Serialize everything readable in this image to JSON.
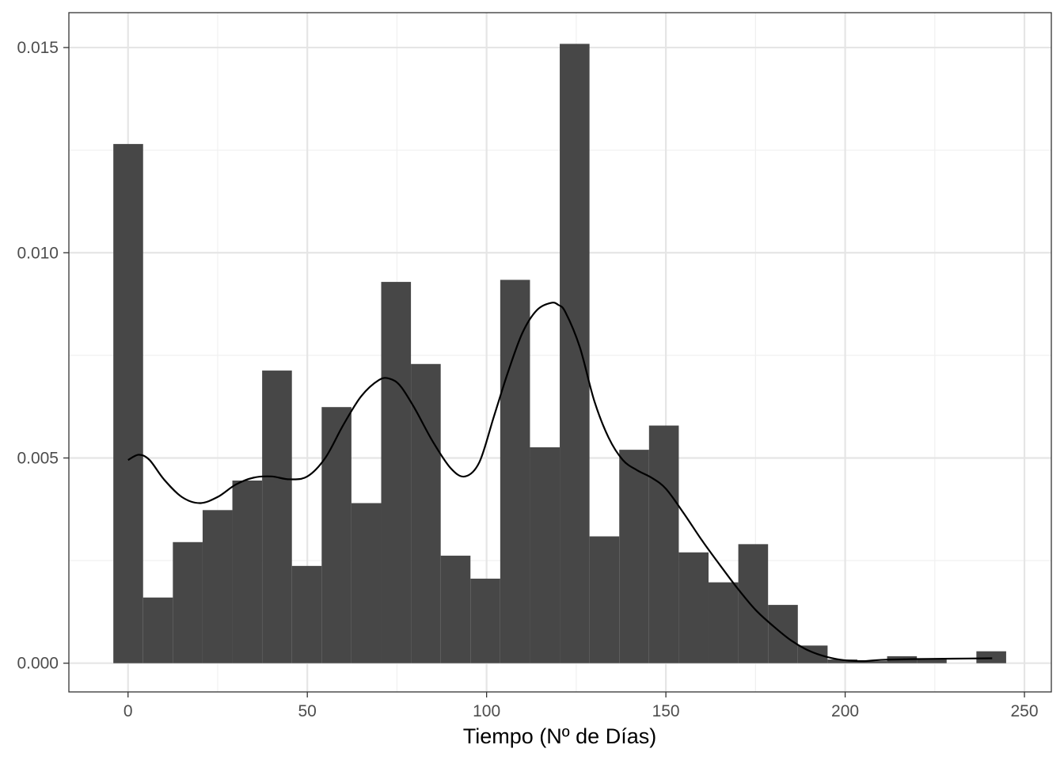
{
  "chart_data": {
    "type": "bar",
    "subtype": "histogram-with-density",
    "title": "",
    "xlabel": "Tiempo (Nº de Días)",
    "ylabel": "",
    "xlim": [
      -16.5,
      257.5
    ],
    "ylim": [
      -0.0007,
      0.01585
    ],
    "grid": true,
    "legend": "none",
    "x_ticks": [
      0,
      50,
      100,
      150,
      200,
      250
    ],
    "x_tick_labels": [
      "0",
      "50",
      "100",
      "150",
      "200",
      "250"
    ],
    "y_ticks": [
      0.0,
      0.005,
      0.01,
      0.015
    ],
    "y_tick_labels": [
      "0.000",
      "0.005",
      "0.010",
      "0.015"
    ],
    "bin_width": 8.3,
    "bins": [
      {
        "x0": -4.1,
        "x1": 4.2,
        "density": 0.01265
      },
      {
        "x0": 4.2,
        "x1": 12.5,
        "density": 0.0016
      },
      {
        "x0": 12.5,
        "x1": 20.8,
        "density": 0.00295
      },
      {
        "x0": 20.8,
        "x1": 29.1,
        "density": 0.00373
      },
      {
        "x0": 29.1,
        "x1": 37.4,
        "density": 0.00445
      },
      {
        "x0": 37.4,
        "x1": 45.7,
        "density": 0.00713
      },
      {
        "x0": 45.7,
        "x1": 54.0,
        "density": 0.00237
      },
      {
        "x0": 54.0,
        "x1": 62.3,
        "density": 0.00624
      },
      {
        "x0": 62.3,
        "x1": 70.6,
        "density": 0.0039
      },
      {
        "x0": 70.6,
        "x1": 78.9,
        "density": 0.00929
      },
      {
        "x0": 78.9,
        "x1": 87.2,
        "density": 0.00729
      },
      {
        "x0": 87.2,
        "x1": 95.5,
        "density": 0.00262
      },
      {
        "x0": 95.5,
        "x1": 103.8,
        "density": 0.00206
      },
      {
        "x0": 103.8,
        "x1": 112.1,
        "density": 0.00934
      },
      {
        "x0": 112.1,
        "x1": 120.4,
        "density": 0.00526
      },
      {
        "x0": 120.4,
        "x1": 128.7,
        "density": 0.01509
      },
      {
        "x0": 128.7,
        "x1": 137.0,
        "density": 0.00309
      },
      {
        "x0": 137.0,
        "x1": 145.3,
        "density": 0.0052
      },
      {
        "x0": 145.3,
        "x1": 153.6,
        "density": 0.00579
      },
      {
        "x0": 153.6,
        "x1": 161.9,
        "density": 0.0027
      },
      {
        "x0": 161.9,
        "x1": 170.2,
        "density": 0.00197
      },
      {
        "x0": 170.2,
        "x1": 178.5,
        "density": 0.0029
      },
      {
        "x0": 178.5,
        "x1": 186.8,
        "density": 0.00142
      },
      {
        "x0": 186.8,
        "x1": 195.1,
        "density": 0.00043
      },
      {
        "x0": 195.1,
        "x1": 203.4,
        "density": 9e-05
      },
      {
        "x0": 203.4,
        "x1": 211.7,
        "density": 5e-05
      },
      {
        "x0": 211.7,
        "x1": 220.0,
        "density": 0.00017
      },
      {
        "x0": 220.0,
        "x1": 228.3,
        "density": 0.00012
      },
      {
        "x0": 228.3,
        "x1": 236.6,
        "density": 0.0
      },
      {
        "x0": 236.6,
        "x1": 244.9,
        "density": 0.00029
      }
    ],
    "density_curve": {
      "x": [
        0,
        3,
        6,
        10,
        15,
        20,
        25,
        30,
        35,
        40,
        45,
        50,
        55,
        60,
        65,
        70,
        73,
        76,
        80,
        85,
        90,
        94,
        98,
        102,
        106,
        110,
        114,
        118,
        120,
        122,
        126,
        130,
        134,
        138,
        142,
        146,
        150,
        155,
        160,
        165,
        170,
        175,
        180,
        185,
        190,
        195,
        200,
        205,
        210,
        220,
        230,
        241
      ],
      "y": [
        0.00495,
        0.00508,
        0.00495,
        0.00448,
        0.00405,
        0.0039,
        0.00405,
        0.00435,
        0.00452,
        0.00455,
        0.00448,
        0.00455,
        0.005,
        0.0058,
        0.0065,
        0.0069,
        0.00693,
        0.00675,
        0.0062,
        0.0054,
        0.00475,
        0.00455,
        0.0049,
        0.006,
        0.0071,
        0.00805,
        0.0086,
        0.00878,
        0.00873,
        0.00855,
        0.0077,
        0.0064,
        0.0055,
        0.00495,
        0.0047,
        0.00452,
        0.00425,
        0.00365,
        0.003,
        0.0024,
        0.00182,
        0.0013,
        0.0009,
        0.00055,
        0.0003,
        0.00015,
        7e-05,
        5e-05,
        8e-05,
        0.0001,
        0.00011,
        0.00012
      ]
    }
  }
}
